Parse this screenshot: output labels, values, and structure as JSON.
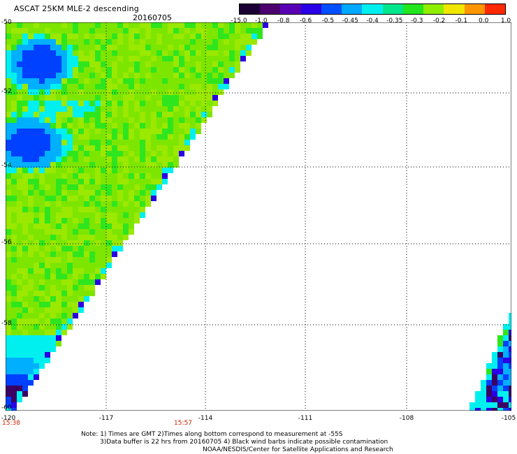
{
  "header": {
    "title": "ASCAT 25KM MLE-2 descending",
    "date": "20160705"
  },
  "colorbar": {
    "ticks": [
      "-15.0",
      "-1.0",
      "-0.8",
      "-0.6",
      "-0.5",
      "-0.45",
      "-0.4",
      "-0.35",
      "-0.3",
      "-0.2",
      "-0.1",
      "0.0",
      "1.0"
    ],
    "colors": [
      "#1a0033",
      "#4b006e",
      "#5a00b4",
      "#2a00e6",
      "#0050ff",
      "#00a8ff",
      "#00f0f0",
      "#00e68c",
      "#22e61e",
      "#90ee00",
      "#f0e600",
      "#ff9600",
      "#ff2800"
    ]
  },
  "axes": {
    "lat_labels": [
      "-50",
      "-52",
      "-54",
      "-56",
      "-58",
      "-60"
    ],
    "lon_labels": [
      "-120",
      "-117",
      "-114",
      "-111",
      "-108",
      "-105"
    ],
    "time_labels": [
      "15:38",
      "15:57"
    ]
  },
  "notes": {
    "line1": "Note: 1) Times are GMT 2)Times along bottom correspond to measurement at -55S",
    "line2": "3)Data buffer is 22 hrs from 20160705 4) Black wind barbs indicate possible contamination",
    "line3": "NOAA/NESDIS/Center for Satellite Applications and Research"
  },
  "map_colors": {
    "lime": "#7de600",
    "yellowgreen": "#9be800",
    "green": "#2fe61e",
    "cyan": "#00f0f0",
    "aqua": "#00b0ff",
    "blue": "#0040ff",
    "deepblue": "#2a00e6",
    "purple": "#3c0064"
  }
}
